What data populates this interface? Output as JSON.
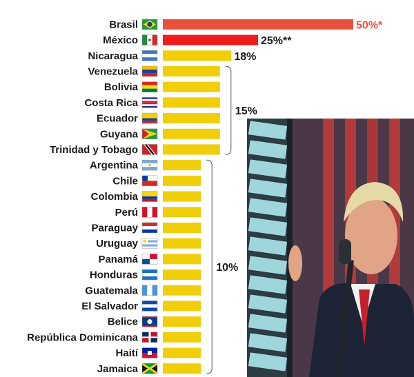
{
  "chart_data": {
    "type": "bar",
    "orientation": "horizontal",
    "categories": [
      "Brasil",
      "México",
      "Nicaragua",
      "Venezuela",
      "Bolivia",
      "Costa Rica",
      "Ecuador",
      "Guyana",
      "Trinidad y Tobago",
      "Argentina",
      "Chile",
      "Colombia",
      "Perú",
      "Paraguay",
      "Uruguay",
      "Panamá",
      "Honduras",
      "Guatemala",
      "El Salvador",
      "Belice",
      "República Dominicana",
      "Haití",
      "Jamaica"
    ],
    "values": [
      50,
      25,
      18,
      15,
      15,
      15,
      15,
      15,
      15,
      10,
      10,
      10,
      10,
      10,
      10,
      10,
      10,
      10,
      10,
      10,
      10,
      10,
      10
    ],
    "value_labels": [
      "50%*",
      "25%**",
      "18%",
      "",
      "",
      "",
      "",
      "",
      "",
      "",
      "",
      "",
      "",
      "",
      "",
      "",
      "",
      "",
      "",
      "",
      "",
      "",
      ""
    ],
    "group_labels": [
      {
        "text": "15%",
        "from": "Venezuela",
        "to": "Trinidad y Tobago"
      },
      {
        "text": "10%",
        "from": "Argentina",
        "to": "Jamaica"
      }
    ],
    "xlim": [
      0,
      50
    ],
    "grid": false,
    "bar_colors": {
      "Brasil": "#e8523d",
      "México": "#ee1c1c",
      "default": "#f0cf0a"
    },
    "flag_icons": [
      "brazil-flag-icon",
      "mexico-flag-icon",
      "nicaragua-flag-icon",
      "venezuela-flag-icon",
      "bolivia-flag-icon",
      "costa-rica-flag-icon",
      "ecuador-flag-icon",
      "guyana-flag-icon",
      "trinidad-tobago-flag-icon",
      "argentina-flag-icon",
      "chile-flag-icon",
      "colombia-flag-icon",
      "peru-flag-icon",
      "paraguay-flag-icon",
      "uruguay-flag-icon",
      "panama-flag-icon",
      "honduras-flag-icon",
      "guatemala-flag-icon",
      "el-salvador-flag-icon",
      "belize-flag-icon",
      "dominican-republic-flag-icon",
      "haiti-flag-icon",
      "jamaica-flag-icon"
    ]
  },
  "photo": {
    "icon": "man-at-microphone-photo"
  }
}
